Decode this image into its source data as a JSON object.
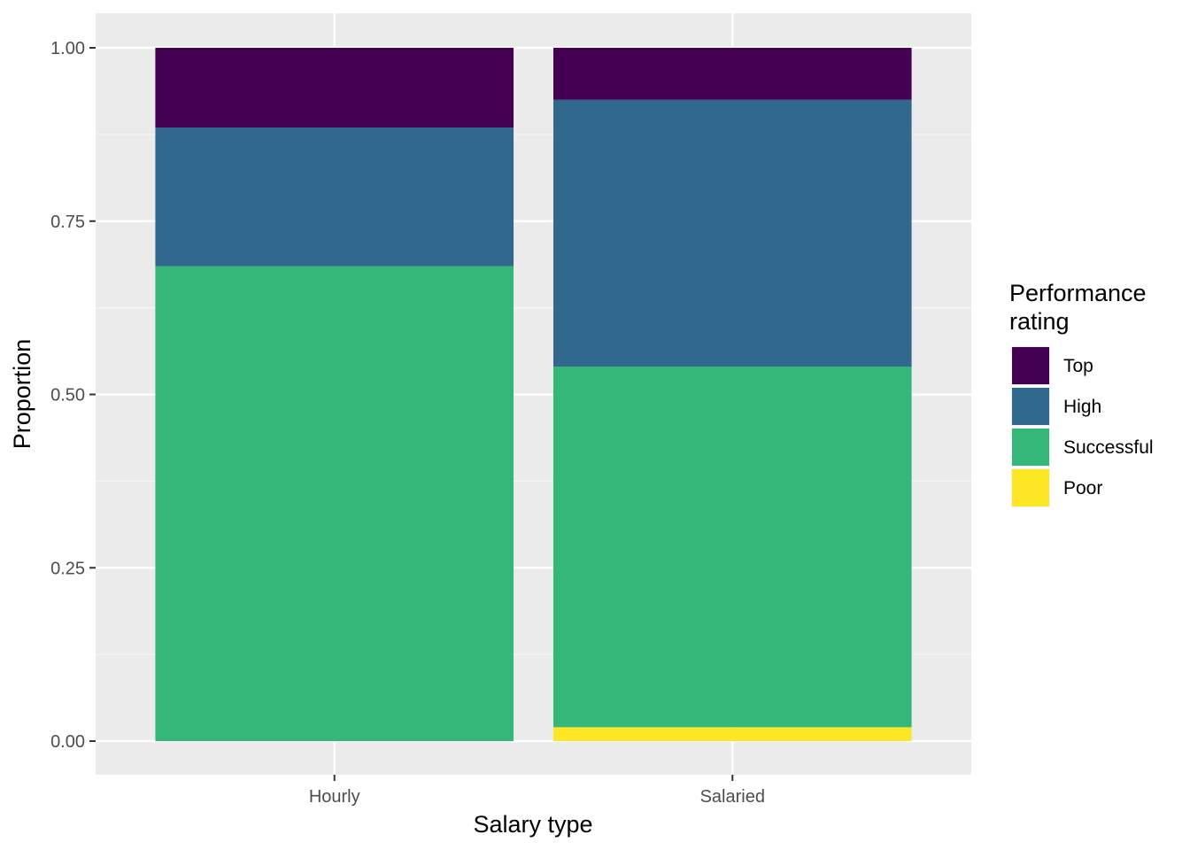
{
  "chart_data": {
    "type": "bar",
    "stacked": true,
    "title": "",
    "xlabel": "Salary type",
    "ylabel": "Proportion",
    "categories": [
      "Hourly",
      "Salaried"
    ],
    "ylim": [
      0,
      1
    ],
    "yticks": [
      "0.00",
      "0.25",
      "0.50",
      "0.75",
      "1.00"
    ],
    "ytick_values": [
      0,
      0.25,
      0.5,
      0.75,
      1.0
    ],
    "grid": true,
    "legend": {
      "title_line1": "Performance",
      "title_line2": "rating",
      "placement": "right"
    },
    "series": [
      {
        "name": "Poor",
        "color": "#FDE725",
        "values": [
          0.0,
          0.02
        ]
      },
      {
        "name": "Successful",
        "color": "#35B779",
        "values": [
          0.685,
          0.52
        ]
      },
      {
        "name": "High",
        "color": "#31688E",
        "values": [
          0.2,
          0.385
        ]
      },
      {
        "name": "Top",
        "color": "#440154",
        "values": [
          0.115,
          0.075
        ]
      }
    ],
    "legend_order": [
      "Top",
      "High",
      "Successful",
      "Poor"
    ],
    "colors": {
      "panel_background": "#EBEBEB",
      "grid_major": "#FFFFFF",
      "grid_minor": "#F5F5F5"
    }
  }
}
